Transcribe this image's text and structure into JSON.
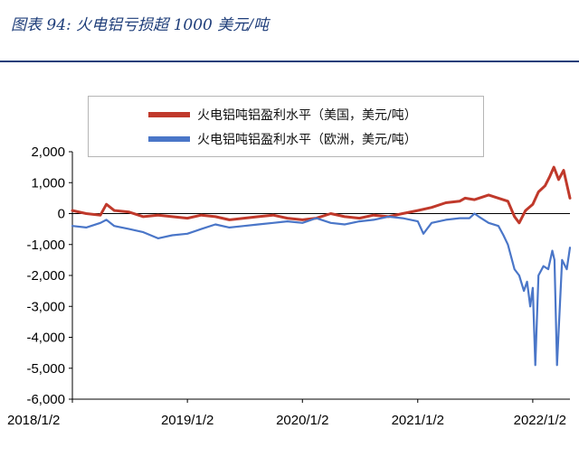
{
  "figure": {
    "title": "图表 94:  火电铝亏损超 1000 美元/吨"
  },
  "colors": {
    "title": "#1f3e7a",
    "us": "#c0392b",
    "eu": "#4a76c8"
  },
  "chart_data": {
    "type": "line",
    "title": "",
    "xlabel": "",
    "ylabel": "",
    "ylim": [
      -6000,
      2000
    ],
    "yticks": [
      2000,
      1000,
      0,
      -1000,
      -2000,
      -3000,
      -4000,
      -5000,
      -6000
    ],
    "ytick_labels": [
      "2,000",
      "1,000",
      "0",
      "-1,000",
      "-2,000",
      "-3,000",
      "-4,000",
      "-5,000",
      "-6,000"
    ],
    "xlim": [
      "2018-01-02",
      "2022-04-30"
    ],
    "xticks": [
      "2018-01-02",
      "2019-01-02",
      "2020-01-02",
      "2021-01-02",
      "2022-01-02"
    ],
    "xtick_labels": [
      "2018/1/2",
      "2019/1/2",
      "2020/1/2",
      "2021/1/2",
      "2022/1/2"
    ],
    "grid": false,
    "legend_position": "top",
    "series": [
      {
        "name": "火电铝吨铝盈利水平（美国，美元/吨）",
        "color": "#c0392b",
        "x": [
          "2018-01-02",
          "2018-02-15",
          "2018-04-01",
          "2018-04-20",
          "2018-05-15",
          "2018-07-01",
          "2018-08-15",
          "2018-10-01",
          "2018-11-15",
          "2019-01-02",
          "2019-02-15",
          "2019-04-01",
          "2019-05-15",
          "2019-07-01",
          "2019-08-15",
          "2019-10-01",
          "2019-11-15",
          "2020-01-02",
          "2020-02-15",
          "2020-04-01",
          "2020-05-15",
          "2020-07-01",
          "2020-08-15",
          "2020-10-01",
          "2020-11-15",
          "2021-01-02",
          "2021-02-15",
          "2021-04-01",
          "2021-05-15",
          "2021-06-01",
          "2021-07-01",
          "2021-08-15",
          "2021-09-15",
          "2021-10-15",
          "2021-11-05",
          "2021-11-20",
          "2021-12-10",
          "2022-01-02",
          "2022-01-20",
          "2022-02-10",
          "2022-02-25",
          "2022-03-10",
          "2022-03-25",
          "2022-04-10",
          "2022-04-30"
        ],
        "values": [
          100,
          0,
          -50,
          300,
          100,
          50,
          -100,
          -50,
          -100,
          -150,
          -50,
          -100,
          -200,
          -150,
          -100,
          -50,
          -150,
          -200,
          -150,
          0,
          -100,
          -150,
          -50,
          -100,
          0,
          100,
          200,
          350,
          400,
          500,
          450,
          600,
          500,
          400,
          -100,
          -300,
          100,
          300,
          700,
          900,
          1200,
          1500,
          1100,
          1400,
          500
        ]
      },
      {
        "name": "火电铝吨铝盈利水平（欧洲，美元/吨）",
        "color": "#4a76c8",
        "x": [
          "2018-01-02",
          "2018-02-15",
          "2018-04-01",
          "2018-04-20",
          "2018-05-15",
          "2018-07-01",
          "2018-08-15",
          "2018-10-01",
          "2018-11-15",
          "2019-01-02",
          "2019-02-15",
          "2019-04-01",
          "2019-05-15",
          "2019-07-01",
          "2019-08-15",
          "2019-10-01",
          "2019-11-15",
          "2020-01-02",
          "2020-02-15",
          "2020-04-01",
          "2020-05-15",
          "2020-07-01",
          "2020-08-15",
          "2020-10-01",
          "2020-11-15",
          "2021-01-02",
          "2021-01-20",
          "2021-02-15",
          "2021-04-01",
          "2021-05-15",
          "2021-06-15",
          "2021-07-01",
          "2021-07-15",
          "2021-08-15",
          "2021-09-15",
          "2021-10-01",
          "2021-10-15",
          "2021-11-05",
          "2021-11-20",
          "2021-12-05",
          "2021-12-15",
          "2021-12-25",
          "2022-01-02",
          "2022-01-10",
          "2022-01-20",
          "2022-02-05",
          "2022-02-20",
          "2022-03-05",
          "2022-03-12",
          "2022-03-20",
          "2022-04-05",
          "2022-04-20",
          "2022-04-30"
        ],
        "values": [
          -400,
          -450,
          -300,
          -200,
          -400,
          -500,
          -600,
          -800,
          -700,
          -650,
          -500,
          -350,
          -450,
          -400,
          -350,
          -300,
          -250,
          -300,
          -150,
          -300,
          -350,
          -250,
          -200,
          -100,
          -150,
          -250,
          -650,
          -300,
          -200,
          -150,
          -150,
          0,
          -100,
          -300,
          -400,
          -700,
          -1000,
          -1800,
          -2000,
          -2500,
          -2200,
          -3000,
          -2400,
          -4900,
          -2000,
          -1700,
          -1800,
          -1200,
          -1500,
          -4900,
          -1500,
          -1800,
          -1100
        ]
      }
    ]
  }
}
